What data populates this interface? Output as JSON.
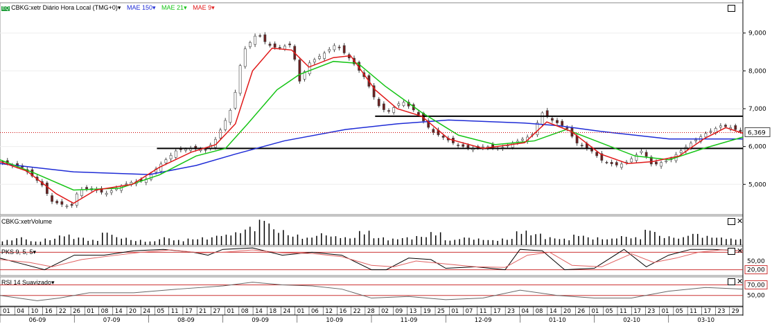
{
  "legend": {
    "main": {
      "icon_label": "EQ",
      "symbol": "CBKG:xetr Diário Hora Local (TMG+0)",
      "caret": "▾",
      "mae150": "MAE 150",
      "mae21": "MAE 21",
      "mae9": "MAE 9"
    },
    "volume": "CBKG:xetrVolume",
    "pks": "PKS 9, 5, 5",
    "rsi": "RSI 14 Suavizado"
  },
  "colors": {
    "mae150": "#1e2bd6",
    "mae21": "#15c415",
    "mae9": "#e01818",
    "price_line": "#cc0000",
    "pks_k": "#000000",
    "pks_d": "#e06060",
    "rsi": "#666666",
    "level": "#cc3333"
  },
  "price_axis": {
    "labels": [
      "9,000",
      "8,000",
      "7,000",
      "6,000",
      "5,000"
    ]
  },
  "last_price": "6,369",
  "pks_axis": {
    "labels": [
      "50,00",
      "20,00"
    ]
  },
  "rsi_axis": {
    "labels": [
      "70,00",
      "50,00"
    ]
  },
  "x_axis": {
    "days": [
      "01",
      "04",
      "10",
      "16",
      "22",
      "26",
      "01",
      "08",
      "14",
      "20",
      "24",
      "05",
      "11",
      "17",
      "21",
      "27",
      "01",
      "08",
      "14",
      "18",
      "24",
      "01",
      "06",
      "12",
      "16",
      "22",
      "28",
      "02",
      "09",
      "13",
      "19",
      "25",
      "01",
      "07",
      "11",
      "17",
      "23",
      "04",
      "08",
      "14",
      "20",
      "26",
      "01",
      "05",
      "11",
      "17",
      "23",
      "01",
      "05",
      "11",
      "17",
      "23",
      "29"
    ],
    "months": [
      "06-09",
      "07-09",
      "08-09",
      "09-09",
      "10-09",
      "11-09",
      "12-09",
      "01-10",
      "02-10",
      "03-10"
    ]
  },
  "chart_data": [
    {
      "type": "candlestick",
      "title": "CBKG:xetr Diário Hora Local (TMG+0)",
      "x_range": [
        "2009-06-01",
        "2010-03-31"
      ],
      "y_range": [
        4200,
        9800
      ],
      "y_ticks": [
        9000,
        8000,
        7000,
        6000,
        5000
      ],
      "last_value": 6369,
      "close_path": [
        [
          "2009-06-01",
          5600
        ],
        [
          "2009-06-10",
          5450
        ],
        [
          "2009-06-18",
          5000
        ],
        [
          "2009-06-22",
          4550
        ],
        [
          "2009-06-30",
          4400
        ],
        [
          "2009-07-03",
          4850
        ],
        [
          "2009-07-08",
          4900
        ],
        [
          "2009-07-14",
          4750
        ],
        [
          "2009-07-20",
          4950
        ],
        [
          "2009-07-24",
          5050
        ],
        [
          "2009-07-30",
          5100
        ],
        [
          "2009-08-05",
          5500
        ],
        [
          "2009-08-12",
          5900
        ],
        [
          "2009-08-18",
          5950
        ],
        [
          "2009-08-24",
          5900
        ],
        [
          "2009-08-28",
          6200
        ],
        [
          "2009-09-01",
          6700
        ],
        [
          "2009-09-04",
          7100
        ],
        [
          "2009-09-08",
          8500
        ],
        [
          "2009-09-14",
          9000
        ],
        [
          "2009-09-18",
          8700
        ],
        [
          "2009-09-22",
          8600
        ],
        [
          "2009-09-28",
          8700
        ],
        [
          "2009-10-01",
          7700
        ],
        [
          "2009-10-05",
          8200
        ],
        [
          "2009-10-12",
          8500
        ],
        [
          "2009-10-16",
          8700
        ],
        [
          "2009-10-22",
          8300
        ],
        [
          "2009-10-28",
          7800
        ],
        [
          "2009-11-02",
          7100
        ],
        [
          "2009-11-06",
          6900
        ],
        [
          "2009-11-12",
          7200
        ],
        [
          "2009-11-18",
          6900
        ],
        [
          "2009-11-24",
          6400
        ],
        [
          "2009-11-30",
          6200
        ],
        [
          "2009-12-04",
          6050
        ],
        [
          "2009-12-10",
          5950
        ],
        [
          "2009-12-16",
          6000
        ],
        [
          "2009-12-22",
          5950
        ],
        [
          "2010-01-04",
          6300
        ],
        [
          "2010-01-08",
          6900
        ],
        [
          "2010-01-12",
          6700
        ],
        [
          "2010-01-18",
          6500
        ],
        [
          "2010-01-22",
          6100
        ],
        [
          "2010-01-28",
          5900
        ],
        [
          "2010-02-02",
          5600
        ],
        [
          "2010-02-08",
          5500
        ],
        [
          "2010-02-12",
          5600
        ],
        [
          "2010-02-18",
          5900
        ],
        [
          "2010-02-22",
          5500
        ],
        [
          "2010-03-01",
          5650
        ],
        [
          "2010-03-05",
          5850
        ],
        [
          "2010-03-10",
          6100
        ],
        [
          "2010-03-16",
          6350
        ],
        [
          "2010-03-22",
          6550
        ],
        [
          "2010-03-26",
          6500
        ],
        [
          "2010-03-31",
          6369
        ]
      ],
      "series": [
        {
          "name": "MAE 150",
          "color": "#1e2bd6",
          "values": [
            [
              "2009-06-01",
              5550
            ],
            [
              "2009-07-01",
              5330
            ],
            [
              "2009-08-01",
              5260
            ],
            [
              "2009-08-20",
              5500
            ],
            [
              "2009-09-05",
              5800
            ],
            [
              "2009-09-25",
              6150
            ],
            [
              "2009-10-20",
              6450
            ],
            [
              "2009-11-10",
              6600
            ],
            [
              "2009-12-01",
              6700
            ],
            [
              "2010-01-01",
              6620
            ],
            [
              "2010-01-15",
              6550
            ],
            [
              "2010-02-01",
              6400
            ],
            [
              "2010-02-15",
              6300
            ],
            [
              "2010-03-01",
              6200
            ],
            [
              "2010-03-31",
              6200
            ]
          ]
        },
        {
          "name": "MAE 21",
          "color": "#15c415",
          "values": [
            [
              "2009-06-01",
              5650
            ],
            [
              "2009-06-15",
              5300
            ],
            [
              "2009-07-01",
              4850
            ],
            [
              "2009-07-20",
              4900
            ],
            [
              "2009-08-05",
              5250
            ],
            [
              "2009-08-20",
              5750
            ],
            [
              "2009-09-01",
              5950
            ],
            [
              "2009-09-10",
              6600
            ],
            [
              "2009-09-22",
              7500
            ],
            [
              "2009-10-01",
              7900
            ],
            [
              "2009-10-15",
              8250
            ],
            [
              "2009-10-25",
              8200
            ],
            [
              "2009-11-05",
              7600
            ],
            [
              "2009-11-20",
              6900
            ],
            [
              "2009-12-05",
              6300
            ],
            [
              "2009-12-20",
              6050
            ],
            [
              "2010-01-05",
              6150
            ],
            [
              "2010-01-18",
              6450
            ],
            [
              "2010-02-01",
              6100
            ],
            [
              "2010-02-15",
              5750
            ],
            [
              "2010-03-01",
              5650
            ],
            [
              "2010-03-15",
              5950
            ],
            [
              "2010-03-31",
              6250
            ]
          ]
        },
        {
          "name": "MAE 9",
          "color": "#e01818",
          "values": [
            [
              "2009-06-01",
              5600
            ],
            [
              "2009-06-12",
              5350
            ],
            [
              "2009-06-24",
              4750
            ],
            [
              "2009-07-01",
              4500
            ],
            [
              "2009-07-10",
              4850
            ],
            [
              "2009-07-25",
              5000
            ],
            [
              "2009-08-05",
              5450
            ],
            [
              "2009-08-18",
              5850
            ],
            [
              "2009-08-28",
              6050
            ],
            [
              "2009-09-05",
              6600
            ],
            [
              "2009-09-12",
              8000
            ],
            [
              "2009-09-20",
              8600
            ],
            [
              "2009-09-28",
              8550
            ],
            [
              "2009-10-05",
              8100
            ],
            [
              "2009-10-15",
              8350
            ],
            [
              "2009-10-22",
              8400
            ],
            [
              "2009-11-01",
              7500
            ],
            [
              "2009-11-10",
              7000
            ],
            [
              "2009-11-20",
              6800
            ],
            [
              "2009-12-01",
              6200
            ],
            [
              "2009-12-15",
              5950
            ],
            [
              "2010-01-01",
              6100
            ],
            [
              "2010-01-10",
              6650
            ],
            [
              "2010-01-20",
              6400
            ],
            [
              "2010-02-01",
              5800
            ],
            [
              "2010-02-12",
              5550
            ],
            [
              "2010-02-22",
              5600
            ],
            [
              "2010-03-05",
              5750
            ],
            [
              "2010-03-15",
              6200
            ],
            [
              "2010-03-24",
              6500
            ],
            [
              "2010-03-31",
              6350
            ]
          ]
        }
      ],
      "horizontal_lines": [
        {
          "from": "2009-11-01",
          "to": "2010-03-31",
          "y": 6800
        },
        {
          "from": "2009-08-04",
          "to": "2010-03-31",
          "y": 5950
        }
      ]
    },
    {
      "type": "bar",
      "title": "CBKG:xetrVolume",
      "values_relative": [
        0.2,
        0.3,
        0.15,
        0.25,
        0.4,
        0.3,
        0.2,
        0.5,
        0.3,
        0.2,
        0.15,
        0.3,
        0.2,
        0.25,
        0.3,
        0.4,
        0.5,
        0.7,
        1.0,
        0.6,
        0.4,
        0.3,
        0.45,
        0.35,
        0.3,
        0.55,
        0.3,
        0.25,
        0.3,
        0.35,
        0.5,
        0.2,
        0.3,
        0.25,
        0.2,
        0.25,
        0.55,
        0.45,
        0.3,
        0.25,
        0.4,
        0.3,
        0.25,
        0.35,
        0.3,
        0.6,
        0.35,
        0.3,
        0.45,
        0.35,
        0.3,
        0.25
      ]
    },
    {
      "type": "line",
      "title": "PKS 9, 5, 5",
      "y_range": [
        0,
        100
      ],
      "levels": [
        80,
        20
      ],
      "series": [
        {
          "name": "PKS K",
          "color": "#000000",
          "values": [
            [
              0,
              60
            ],
            [
              0.03,
              40
            ],
            [
              0.06,
              20
            ],
            [
              0.1,
              70
            ],
            [
              0.14,
              70
            ],
            [
              0.18,
              85
            ],
            [
              0.22,
              90
            ],
            [
              0.26,
              80
            ],
            [
              0.28,
              70
            ],
            [
              0.3,
              90
            ],
            [
              0.34,
              95
            ],
            [
              0.38,
              70
            ],
            [
              0.42,
              80
            ],
            [
              0.46,
              70
            ],
            [
              0.5,
              20
            ],
            [
              0.52,
              20
            ],
            [
              0.55,
              60
            ],
            [
              0.58,
              55
            ],
            [
              0.6,
              25
            ],
            [
              0.64,
              30
            ],
            [
              0.68,
              20
            ],
            [
              0.7,
              90
            ],
            [
              0.73,
              85
            ],
            [
              0.76,
              20
            ],
            [
              0.8,
              25
            ],
            [
              0.84,
              90
            ],
            [
              0.87,
              30
            ],
            [
              0.9,
              70
            ],
            [
              0.93,
              90
            ],
            [
              0.96,
              90
            ],
            [
              1,
              85
            ]
          ]
        },
        {
          "name": "PKS D",
          "color": "#e06060",
          "values": [
            [
              0,
              55
            ],
            [
              0.04,
              45
            ],
            [
              0.07,
              30
            ],
            [
              0.11,
              55
            ],
            [
              0.15,
              68
            ],
            [
              0.19,
              80
            ],
            [
              0.23,
              88
            ],
            [
              0.27,
              78
            ],
            [
              0.3,
              80
            ],
            [
              0.34,
              88
            ],
            [
              0.38,
              78
            ],
            [
              0.42,
              76
            ],
            [
              0.46,
              65
            ],
            [
              0.5,
              35
            ],
            [
              0.53,
              30
            ],
            [
              0.56,
              50
            ],
            [
              0.6,
              40
            ],
            [
              0.64,
              30
            ],
            [
              0.68,
              28
            ],
            [
              0.71,
              70
            ],
            [
              0.74,
              80
            ],
            [
              0.77,
              35
            ],
            [
              0.81,
              30
            ],
            [
              0.85,
              75
            ],
            [
              0.88,
              45
            ],
            [
              0.91,
              60
            ],
            [
              0.94,
              80
            ],
            [
              0.97,
              88
            ],
            [
              1,
              85
            ]
          ]
        }
      ]
    },
    {
      "type": "line",
      "title": "RSI 14 Suavizado",
      "y_range": [
        30,
        85
      ],
      "levels": [
        70,
        50
      ],
      "series": [
        {
          "name": "RSI 14 Suavizado",
          "color": "#666666",
          "values": [
            [
              0,
              50
            ],
            [
              0.05,
              40
            ],
            [
              0.08,
              45
            ],
            [
              0.12,
              55
            ],
            [
              0.18,
              55
            ],
            [
              0.24,
              62
            ],
            [
              0.3,
              68
            ],
            [
              0.34,
              75
            ],
            [
              0.38,
              70
            ],
            [
              0.42,
              68
            ],
            [
              0.46,
              62
            ],
            [
              0.5,
              45
            ],
            [
              0.55,
              48
            ],
            [
              0.6,
              42
            ],
            [
              0.65,
              45
            ],
            [
              0.7,
              60
            ],
            [
              0.75,
              50
            ],
            [
              0.8,
              45
            ],
            [
              0.85,
              45
            ],
            [
              0.9,
              58
            ],
            [
              0.95,
              65
            ],
            [
              1,
              62
            ]
          ]
        }
      ]
    }
  ]
}
